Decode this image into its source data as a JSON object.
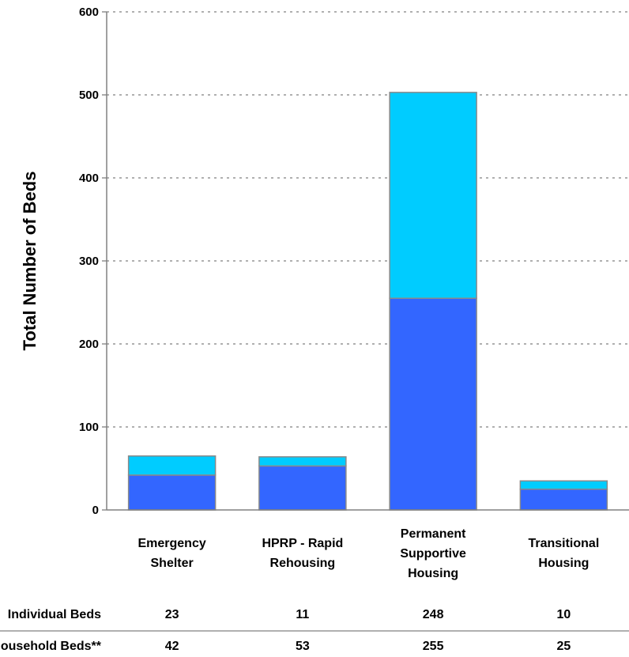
{
  "chart_data": {
    "type": "bar",
    "stacked": true,
    "title": "",
    "xlabel": "",
    "ylabel": "Total Number of Beds",
    "ylim": [
      0,
      600
    ],
    "yticks": [
      0,
      100,
      200,
      300,
      400,
      500,
      600
    ],
    "grid": "horizontal dotted",
    "categories": [
      [
        "Emergency",
        "Shelter"
      ],
      [
        "HPRP - Rapid",
        "Rehousing"
      ],
      [
        "Permanent",
        "Supportive",
        "Housing"
      ],
      [
        "Transitional",
        "Housing"
      ]
    ],
    "series": [
      {
        "name": "Household Beds**",
        "values": [
          42,
          53,
          255,
          25
        ],
        "color": "#3366ff"
      },
      {
        "name": "Individual Beds",
        "values": [
          23,
          11,
          248,
          10
        ],
        "color": "#00ccff"
      }
    ],
    "table": {
      "rows": [
        {
          "label": "Individual Beds",
          "values": [
            "23",
            "11",
            "248",
            "10"
          ]
        },
        {
          "label": "Household Beds**",
          "values": [
            "42",
            "53",
            "255",
            "25"
          ]
        }
      ]
    }
  }
}
